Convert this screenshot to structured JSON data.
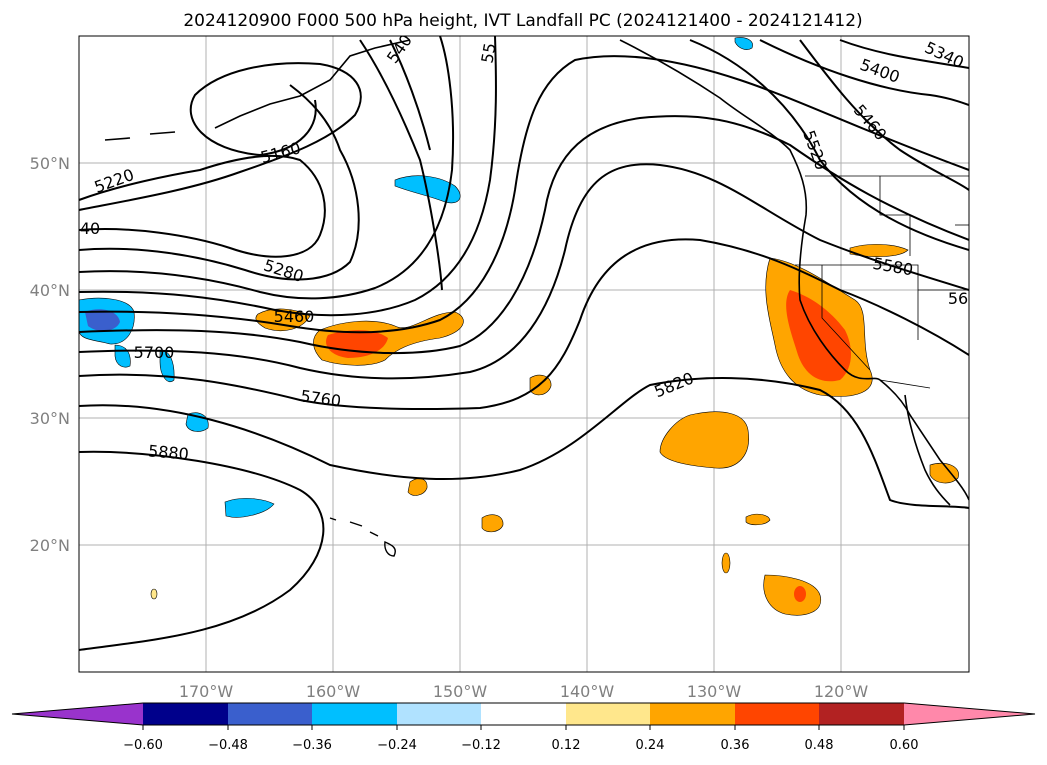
{
  "title": "2024120900 F000 500 hPa height, IVT Landfall PC (2024121400 - 2024121412)",
  "map": {
    "lat_ticks": [
      "50°N",
      "40°N",
      "30°N",
      "20°N"
    ],
    "lon_ticks": [
      "170°W",
      "160°W",
      "150°W",
      "140°W",
      "130°W",
      "120°W"
    ],
    "gridlines": true
  },
  "contour_labels": [
    "5400",
    "5340",
    "5460",
    "5520",
    "5580",
    "5160",
    "5220",
    "5280",
    "5460",
    "5700",
    "5760",
    "5820",
    "5880",
    "40",
    "56",
    "55",
    "540"
  ],
  "colorbar": {
    "ticks": [
      "−0.60",
      "−0.48",
      "−0.36",
      "−0.24",
      "−0.12",
      "0.12",
      "0.24",
      "0.36",
      "0.48",
      "0.60"
    ],
    "colors": [
      "#9933cc",
      "#00008b",
      "#3a5fcd",
      "#00bfff",
      "#b0e2ff",
      "#ffffff",
      "#ffe78c",
      "#ffa500",
      "#ff4500",
      "#b22222",
      "#ff88aa"
    ],
    "extend": "both"
  }
}
